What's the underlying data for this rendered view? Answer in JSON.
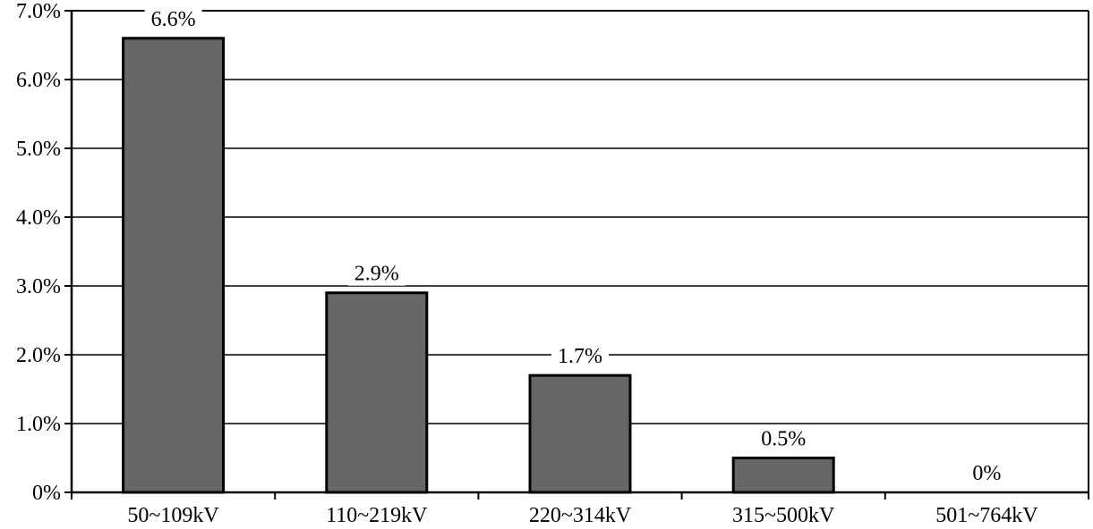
{
  "chart_data": {
    "type": "bar",
    "title": "",
    "xlabel": "",
    "ylabel": "",
    "categories": [
      "50~109kV",
      "110~219kV",
      "220~314kV",
      "315~500kV",
      "501~764kV"
    ],
    "values": [
      6.6,
      2.9,
      1.7,
      0.5,
      0
    ],
    "data_labels": [
      "6.6%",
      "2.9%",
      "1.7%",
      "0.5%",
      "0%"
    ],
    "ylim": [
      0,
      7
    ],
    "yticks": [
      0,
      1,
      2,
      3,
      4,
      5,
      6,
      7
    ],
    "ytick_labels": [
      "0%",
      "1.0%",
      "2.0%",
      "3.0%",
      "4.0%",
      "5.0%",
      "6.0%",
      "7.0%"
    ],
    "grid": true,
    "bar_color": "#666666",
    "bar_edge_color": "#000000"
  }
}
